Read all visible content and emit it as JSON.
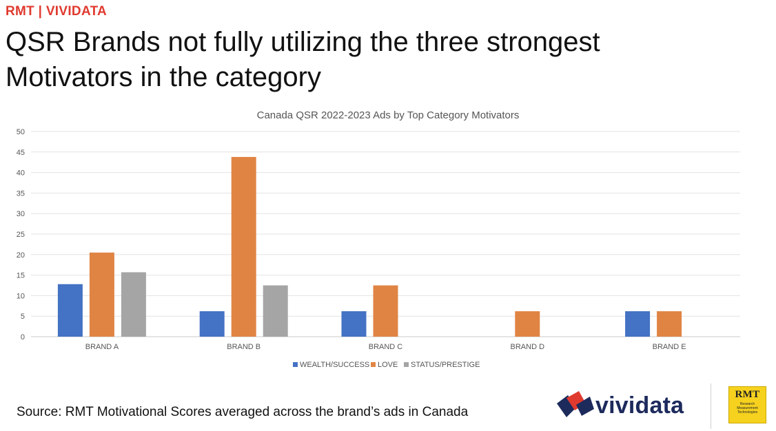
{
  "header": {
    "brand": "RMT | VIVIDATA",
    "title": "QSR Brands not fully utilizing the three strongest Motivators in the category"
  },
  "chart_data": {
    "type": "bar",
    "title": "Canada QSR 2022-2023 Ads by Top Category Motivators",
    "categories": [
      "BRAND A",
      "BRAND B",
      "BRAND C",
      "BRAND D",
      "BRAND E"
    ],
    "series": [
      {
        "name": "WEALTH/SUCCESS",
        "color": "#4472c4",
        "values": [
          12.8,
          6.2,
          6.2,
          0,
          6.2
        ]
      },
      {
        "name": "LOVE",
        "color": "#e08444",
        "values": [
          20.5,
          43.8,
          12.5,
          6.2,
          6.2
        ]
      },
      {
        "name": "STATUS/PRESTIGE",
        "color": "#a5a5a5",
        "values": [
          15.7,
          12.5,
          0,
          0,
          0
        ]
      }
    ],
    "ylim": [
      0,
      50
    ],
    "yticks": [
      0,
      5,
      10,
      15,
      20,
      25,
      30,
      35,
      40,
      45,
      50
    ],
    "grid": true,
    "legend": "bottom"
  },
  "footer": {
    "source": "Source: RMT Motivational Scores averaged across the brand’s ads in Canada",
    "logo_text": "vividata",
    "badge_title": "RMT",
    "badge_subtitle": "Research Measurement Technologies"
  }
}
